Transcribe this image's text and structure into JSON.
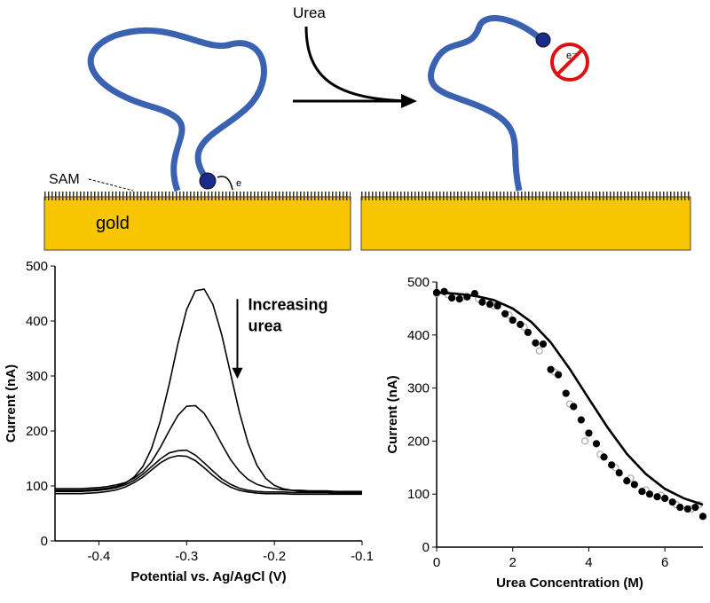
{
  "schematic": {
    "reagent": "Urea",
    "layer": "SAM",
    "electrode": "gold",
    "electron": "e",
    "blocked_electron": "e⁻"
  },
  "chart_data": [
    {
      "type": "line",
      "x_label": "Potential vs. Ag/AgCl (V)",
      "y_label": "Current (nA)",
      "annotation_lines": [
        "Increasing",
        "urea"
      ],
      "x": [
        -0.45,
        -0.44,
        -0.43,
        -0.42,
        -0.41,
        -0.4,
        -0.39,
        -0.38,
        -0.37,
        -0.36,
        -0.35,
        -0.34,
        -0.33,
        -0.32,
        -0.31,
        -0.3,
        -0.29,
        -0.28,
        -0.27,
        -0.26,
        -0.25,
        -0.24,
        -0.23,
        -0.22,
        -0.21,
        -0.2,
        -0.19,
        -0.18,
        -0.17,
        -0.16,
        -0.15,
        -0.14,
        -0.13,
        -0.12,
        -0.11,
        -0.1
      ],
      "series": [
        {
          "color": "#000000",
          "values": [
            92,
            92,
            92,
            92,
            93,
            94,
            96,
            99,
            105,
            116,
            135,
            168,
            218,
            284,
            358,
            421,
            455,
            458,
            430,
            375,
            305,
            235,
            178,
            138,
            114,
            101,
            95,
            92,
            90,
            90,
            89,
            89,
            89,
            88,
            88,
            88
          ]
        },
        {
          "color": "#000000",
          "values": [
            95,
            95,
            95,
            95,
            96,
            97,
            99,
            102,
            106,
            114,
            126,
            144,
            170,
            200,
            228,
            245,
            246,
            232,
            206,
            176,
            148,
            127,
            112,
            103,
            98,
            95,
            93,
            92,
            92,
            91,
            91,
            91,
            90,
            90,
            90,
            90
          ]
        },
        {
          "color": "#000000",
          "values": [
            90,
            90,
            90,
            90,
            91,
            92,
            94,
            97,
            102,
            110,
            121,
            135,
            149,
            160,
            164,
            165,
            156,
            142,
            127,
            113,
            103,
            96,
            92,
            90,
            89,
            89,
            89,
            88,
            88,
            88,
            88,
            88,
            87,
            87,
            87,
            87
          ]
        },
        {
          "color": "#000000",
          "values": [
            86,
            86,
            86,
            86,
            87,
            88,
            90,
            93,
            98,
            106,
            116,
            129,
            142,
            151,
            155,
            154,
            146,
            133,
            119,
            107,
            98,
            92,
            89,
            87,
            86,
            86,
            86,
            85,
            85,
            85,
            85,
            85,
            85,
            85,
            85,
            85
          ]
        }
      ],
      "xlim": [
        -0.45,
        -0.1
      ],
      "ylim": [
        0,
        500
      ],
      "xticks": [
        -0.4,
        -0.3,
        -0.2,
        -0.1
      ],
      "yticks": [
        0,
        100,
        200,
        300,
        400,
        500
      ]
    },
    {
      "type": "scatter",
      "x_label": "Urea Concentration (M)",
      "y_label": "Current (nA)",
      "series": [
        {
          "style": "open",
          "color": "#aaaaaa",
          "x": [
            0,
            0.3,
            0.7,
            1.1,
            1.5,
            1.9,
            2.3,
            2.7,
            3.1,
            3.5,
            3.9,
            4.3,
            4.7,
            5.1,
            5.5,
            5.9,
            6.3,
            6.7,
            6.9
          ],
          "values": [
            478,
            476,
            472,
            468,
            455,
            438,
            415,
            370,
            330,
            270,
            200,
            175,
            150,
            130,
            108,
            98,
            80,
            72,
            80
          ]
        },
        {
          "style": "filled",
          "color": "#000000",
          "x": [
            0,
            0.2,
            0.4,
            0.6,
            0.8,
            1.0,
            1.2,
            1.4,
            1.6,
            1.8,
            2.0,
            2.2,
            2.4,
            2.6,
            2.8,
            3.0,
            3.2,
            3.4,
            3.6,
            3.8,
            4.0,
            4.2,
            4.4,
            4.6,
            4.8,
            5.0,
            5.2,
            5.4,
            5.6,
            5.8,
            6.0,
            6.2,
            6.4,
            6.6,
            6.8,
            7.0
          ],
          "values": [
            480,
            482,
            470,
            468,
            472,
            478,
            462,
            458,
            455,
            440,
            428,
            420,
            405,
            385,
            383,
            335,
            325,
            290,
            265,
            240,
            215,
            195,
            170,
            155,
            140,
            125,
            118,
            105,
            100,
            95,
            92,
            85,
            75,
            72,
            75,
            58
          ]
        },
        {
          "style": "line",
          "color": "#000000",
          "x": [
            0,
            0.5,
            1,
            1.5,
            2,
            2.5,
            3,
            3.5,
            4,
            4.5,
            5,
            5.5,
            6,
            6.5,
            7
          ],
          "values": [
            480,
            478,
            474,
            466,
            450,
            424,
            386,
            336,
            280,
            225,
            176,
            138,
            110,
            92,
            80
          ]
        }
      ],
      "xlim": [
        0,
        7
      ],
      "ylim": [
        0,
        500
      ],
      "xticks": [
        0,
        2,
        4,
        6
      ],
      "yticks": [
        0,
        100,
        200,
        300,
        400,
        500
      ]
    }
  ]
}
